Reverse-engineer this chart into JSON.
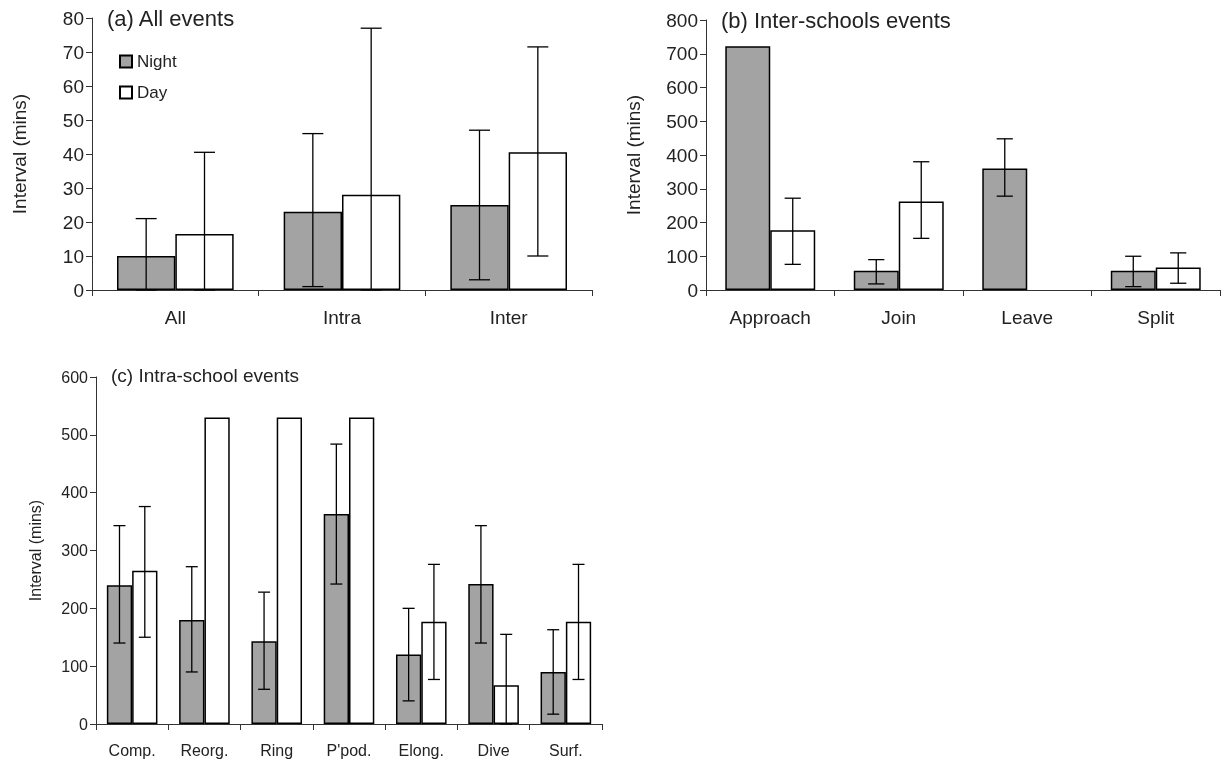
{
  "chart_data": [
    {
      "type": "bar",
      "title": "(a) All events",
      "ylabel": "Interval (mins)",
      "categories": [
        "All",
        "Intra",
        "Inter"
      ],
      "series": [
        {
          "name": "Night",
          "color": "#a3a3a3",
          "values": [
            10,
            23,
            25
          ],
          "errors": [
            [
              0,
              21
            ],
            [
              1,
              46
            ],
            [
              3,
              47
            ]
          ]
        },
        {
          "name": "Day",
          "color": "#ffffff",
          "values": [
            16.5,
            28,
            40.5
          ],
          "errors": [
            [
              0,
              40.5
            ],
            [
              0,
              77
            ],
            [
              10,
              71.5
            ]
          ]
        }
      ],
      "ylim": [
        0,
        80
      ],
      "yticks": [
        0,
        10,
        20,
        30,
        40,
        50,
        60,
        70,
        80
      ],
      "legend": "top left",
      "grid": false
    },
    {
      "type": "bar",
      "title": "(b) Inter-schools events",
      "ylabel": "Interval (mins)",
      "categories": [
        "Approach",
        "Join",
        "Leave",
        "Split"
      ],
      "series": [
        {
          "color": "#a3a3a3",
          "values": [
            722,
            57,
            360,
            57
          ],
          "errors": [
            null,
            [
              18,
              90
            ],
            [
              278,
              448
            ],
            [
              10,
              100
            ]
          ]
        },
        {
          "color": "#ffffff",
          "values": [
            177,
            262,
            null,
            67
          ],
          "errors": [
            [
              76,
              272
            ],
            [
              153,
              380
            ],
            null,
            [
              20,
              110
            ]
          ]
        }
      ],
      "ylim": [
        0,
        800
      ],
      "yticks": [
        0,
        100,
        200,
        300,
        400,
        500,
        600,
        700,
        800
      ],
      "grid": false
    },
    {
      "type": "bar",
      "title": "(c) Intra-school events",
      "ylabel": "Interval (mins)",
      "categories": [
        "Comp.",
        "Reorg.",
        "Ring",
        "P'pod.",
        "Elong.",
        "Dive",
        "Surf."
      ],
      "series": [
        {
          "color": "#a3a3a3",
          "values": [
            240,
            180,
            143,
            363,
            120,
            242,
            90
          ],
          "errors": [
            [
              140,
              343
            ],
            [
              90,
              272
            ],
            [
              60,
              228
            ],
            [
              242,
              484
            ],
            [
              40,
              200
            ],
            [
              140,
              343
            ],
            [
              17,
              163
            ]
          ]
        },
        {
          "color": "#ffffff",
          "values": [
            265,
            530,
            530,
            530,
            177,
            67,
            177
          ],
          "errors": [
            [
              150,
              376
            ],
            null,
            null,
            null,
            [
              77,
              276
            ],
            [
              0,
              155
            ],
            [
              77,
              276
            ]
          ]
        }
      ],
      "ylim": [
        0,
        600
      ],
      "yticks": [
        0,
        100,
        200,
        300,
        400,
        500,
        600
      ],
      "grid": false
    }
  ]
}
